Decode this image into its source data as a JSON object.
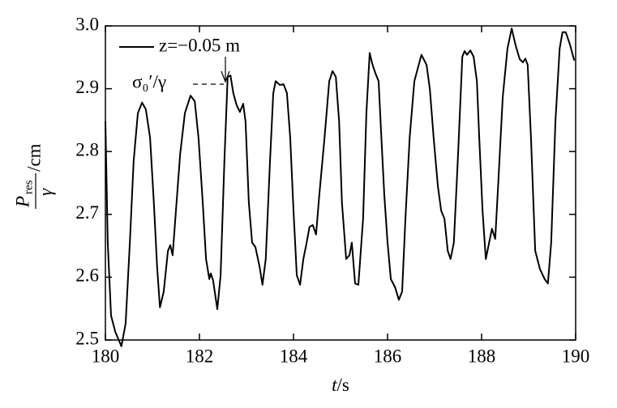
{
  "chart_data": {
    "type": "line",
    "x_label": {
      "symbol": "t",
      "unit": "/s"
    },
    "y_label": {
      "numerator": "P",
      "subscript": "res",
      "denominator": "γ",
      "unit": "/cm"
    },
    "annotation": "σ₀′/γ",
    "xlim": [
      180,
      190
    ],
    "xticks": [
      180,
      182,
      184,
      186,
      188,
      190
    ],
    "ylim": [
      2.5,
      3.0
    ],
    "yticks": [
      2.5,
      2.6,
      2.7,
      2.8,
      2.9,
      {
        "value": 3.0,
        "label": "3.0"
      }
    ],
    "series": [
      {
        "name": "z=−0.05 m",
        "color": "#000000",
        "x": [
          180.0,
          180.05,
          180.12,
          180.21,
          180.34,
          180.43,
          180.52,
          180.6,
          180.69,
          180.78,
          180.86,
          180.95,
          181.03,
          181.1,
          181.16,
          181.24,
          181.33,
          181.38,
          181.43,
          181.5,
          181.59,
          181.69,
          181.81,
          181.9,
          181.98,
          182.07,
          182.14,
          182.21,
          182.24,
          182.29,
          182.38,
          182.45,
          182.53,
          182.6,
          182.66,
          182.72,
          182.79,
          182.86,
          182.93,
          182.98,
          183.05,
          183.12,
          183.19,
          183.28,
          183.34,
          183.41,
          183.5,
          183.57,
          183.62,
          183.71,
          183.79,
          183.86,
          183.93,
          184.0,
          184.07,
          184.14,
          184.21,
          184.28,
          184.34,
          184.41,
          184.48,
          184.55,
          184.66,
          184.76,
          184.83,
          184.9,
          184.97,
          185.03,
          185.12,
          185.19,
          185.24,
          185.31,
          185.38,
          185.48,
          185.55,
          185.62,
          185.67,
          185.74,
          185.81,
          185.86,
          185.93,
          186.0,
          186.07,
          186.16,
          186.24,
          186.31,
          186.38,
          186.47,
          186.57,
          186.72,
          186.83,
          186.9,
          186.98,
          187.07,
          187.14,
          187.21,
          187.28,
          187.34,
          187.41,
          187.5,
          187.59,
          187.64,
          187.69,
          187.76,
          187.83,
          187.9,
          187.95,
          188.02,
          188.09,
          188.16,
          188.22,
          188.29,
          188.36,
          188.45,
          188.55,
          188.64,
          188.72,
          188.81,
          188.88,
          188.93,
          188.98,
          189.05,
          189.14,
          189.24,
          189.34,
          189.41,
          189.48,
          189.57,
          189.66,
          189.72,
          189.79,
          189.88,
          189.97
        ],
        "values": [
          2.848,
          2.655,
          2.539,
          2.513,
          2.49,
          2.526,
          2.655,
          2.784,
          2.861,
          2.878,
          2.867,
          2.822,
          2.719,
          2.616,
          2.552,
          2.577,
          2.642,
          2.651,
          2.635,
          2.706,
          2.796,
          2.861,
          2.889,
          2.88,
          2.822,
          2.719,
          2.629,
          2.597,
          2.606,
          2.595,
          2.549,
          2.603,
          2.784,
          2.919,
          2.921,
          2.893,
          2.874,
          2.863,
          2.876,
          2.848,
          2.719,
          2.655,
          2.648,
          2.616,
          2.588,
          2.629,
          2.784,
          2.893,
          2.912,
          2.906,
          2.907,
          2.893,
          2.822,
          2.706,
          2.603,
          2.588,
          2.629,
          2.655,
          2.68,
          2.683,
          2.668,
          2.732,
          2.822,
          2.912,
          2.928,
          2.919,
          2.848,
          2.719,
          2.629,
          2.635,
          2.655,
          2.59,
          2.588,
          2.693,
          2.861,
          2.957,
          2.941,
          2.925,
          2.912,
          2.835,
          2.732,
          2.655,
          2.597,
          2.584,
          2.564,
          2.577,
          2.693,
          2.822,
          2.912,
          2.954,
          2.938,
          2.899,
          2.822,
          2.745,
          2.706,
          2.693,
          2.642,
          2.629,
          2.655,
          2.796,
          2.951,
          2.96,
          2.954,
          2.961,
          2.951,
          2.912,
          2.822,
          2.706,
          2.629,
          2.655,
          2.677,
          2.661,
          2.758,
          2.887,
          2.964,
          2.996,
          2.97,
          2.947,
          2.942,
          2.948,
          2.938,
          2.822,
          2.642,
          2.613,
          2.597,
          2.59,
          2.655,
          2.848,
          2.964,
          2.99,
          2.99,
          2.97,
          2.945
        ]
      }
    ]
  }
}
